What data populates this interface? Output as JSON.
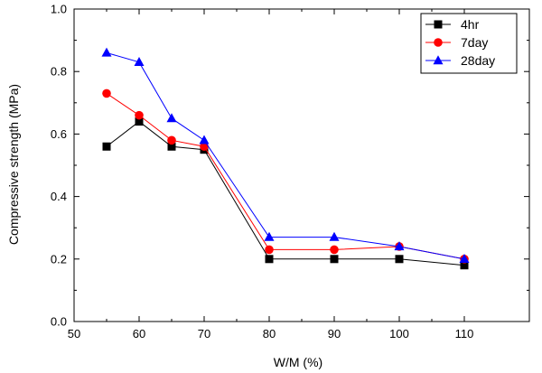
{
  "chart_data": {
    "type": "line",
    "title": "",
    "xlabel": "W/M (%)",
    "ylabel": "Compressive strength (MPa)",
    "xlim": [
      50,
      120
    ],
    "ylim": [
      0.0,
      1.0
    ],
    "x_ticks": [
      {
        "value": 50,
        "label": "50"
      },
      {
        "value": 60,
        "label": "60"
      },
      {
        "value": 70,
        "label": "70"
      },
      {
        "value": 80,
        "label": "80"
      },
      {
        "value": 90,
        "label": "90"
      },
      {
        "value": 100,
        "label": "100"
      },
      {
        "value": 110,
        "label": "110"
      }
    ],
    "y_ticks": [
      {
        "value": 0.0,
        "label": "0.0"
      },
      {
        "value": 0.2,
        "label": "0.2"
      },
      {
        "value": 0.4,
        "label": "0.4"
      },
      {
        "value": 0.6,
        "label": "0.6"
      },
      {
        "value": 0.8,
        "label": "0.8"
      },
      {
        "value": 1.0,
        "label": "1.0"
      }
    ],
    "grid": false,
    "legend_position": "top-right",
    "x": [
      55,
      60,
      65,
      70,
      80,
      90,
      100,
      110
    ],
    "series": [
      {
        "name": "4hr",
        "marker": "square",
        "color": "#000000",
        "values": [
          0.56,
          0.64,
          0.56,
          0.55,
          0.2,
          0.2,
          0.2,
          0.18
        ]
      },
      {
        "name": "7day",
        "marker": "circle",
        "color": "#ff0000",
        "values": [
          0.73,
          0.66,
          0.58,
          0.56,
          0.23,
          0.23,
          0.24,
          0.2
        ]
      },
      {
        "name": "28day",
        "marker": "triangle",
        "color": "#0000ff",
        "values": [
          0.86,
          0.83,
          0.65,
          0.58,
          0.27,
          0.27,
          0.24,
          0.2
        ]
      }
    ]
  }
}
